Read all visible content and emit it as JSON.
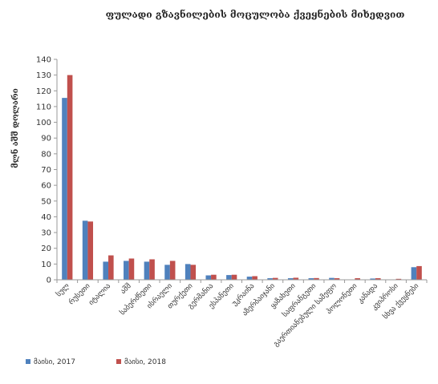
{
  "chart_data": {
    "type": "bar",
    "title": "ფულადი გზავნილების მოცულობა ქვეყნების მიხედვით",
    "xlabel": "",
    "ylabel": "მლნ აშშ დოლარი",
    "ylim": [
      0,
      140
    ],
    "yticks": [
      0,
      10,
      20,
      30,
      40,
      50,
      60,
      70,
      80,
      90,
      100,
      110,
      120,
      130,
      140
    ],
    "grid": false,
    "legend_position": "bottom",
    "categories": [
      "სულ",
      "რუსეთი",
      "იტალია",
      "აშშ",
      "საბერძნეთი",
      "ისრაელი",
      "თურქეთი",
      "გერმანია",
      "ესპანეთი",
      "უკრაინა",
      "აზერბაიჯანი",
      "ყაზახეთი",
      "საფრანგეთი",
      "გაერთიანებული სამეფო",
      "პოლონეთი",
      "კანადა",
      "კვიპროსი",
      "სხვა ქვეყნები"
    ],
    "series": [
      {
        "name": "მაისი, 2017",
        "color": "#4f81bd",
        "values": [
          115.5,
          37.5,
          11.5,
          12.0,
          11.5,
          9.5,
          10.0,
          2.8,
          3.0,
          2.0,
          1.0,
          1.0,
          1.0,
          1.2,
          0.0,
          0.8,
          0.2,
          8.0
        ]
      },
      {
        "name": "მაისი, 2018",
        "color": "#c0504d",
        "values": [
          130.0,
          37.0,
          15.5,
          13.5,
          13.0,
          12.0,
          9.5,
          3.2,
          3.2,
          2.3,
          1.2,
          1.3,
          1.1,
          1.0,
          1.0,
          1.0,
          0.6,
          8.7
        ]
      }
    ]
  }
}
